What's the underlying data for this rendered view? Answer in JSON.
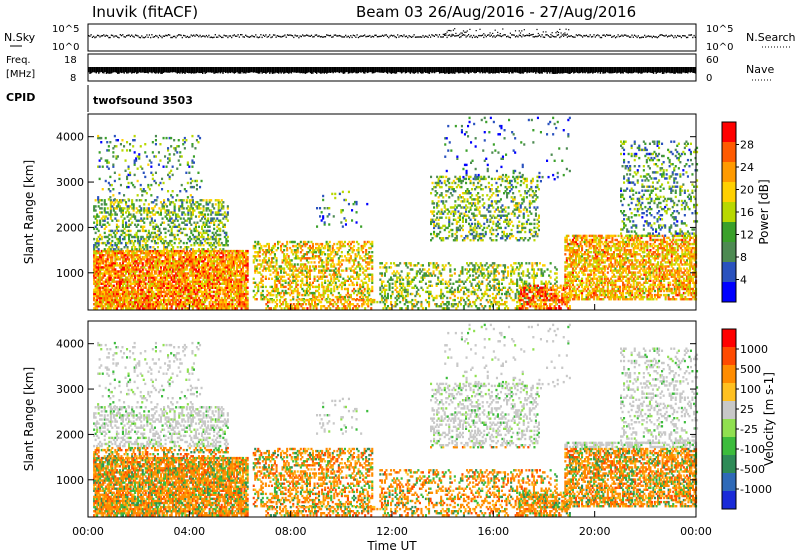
{
  "header": {
    "station": "Inuvik (fitACF)",
    "beam_date": "Beam 03 26/Aug/2016 - 27/Aug/2016"
  },
  "panels": {
    "nsky": {
      "left_label": "N.Sky",
      "right_label": "N.Search",
      "left_top": "10^5",
      "left_bottom": "10^0",
      "right_top": "10^5",
      "right_bottom": "10^0"
    },
    "freq": {
      "left_label_1": "Freq.",
      "left_label_2": "[MHz]",
      "right_label": "Nave",
      "left_top": "18",
      "left_bottom": "8",
      "right_top": "60",
      "right_bottom": "0"
    },
    "cpid": {
      "left_label": "CPID",
      "value": "twofsound 3503"
    }
  },
  "chart_data": [
    {
      "type": "heatmap",
      "parameter": "Power",
      "ylabel": "Slant Range [km]",
      "xlabel": "Time UT",
      "x_ticks": [
        "00:00",
        "04:00",
        "08:00",
        "12:00",
        "16:00",
        "20:00",
        "00:00"
      ],
      "x_range_hours": [
        0,
        24
      ],
      "y_ticks": [
        1000,
        2000,
        3000,
        4000
      ],
      "ylim": [
        180,
        4500
      ],
      "colorbar": {
        "label": "Power [dB]",
        "ticks": [
          "4",
          "8",
          "12",
          "16",
          "20",
          "24",
          "28"
        ],
        "range": [
          0,
          30
        ],
        "colors": [
          "#0000ff",
          "#2a52be",
          "#4d8a52",
          "#3aa02a",
          "#b8d800",
          "#ffd000",
          "#ff9a00",
          "#ff5a00",
          "#ff0000"
        ]
      }
    },
    {
      "type": "heatmap",
      "parameter": "Velocity",
      "ylabel": "Slant Range [km]",
      "xlabel": "Time UT",
      "x_ticks": [
        "00:00",
        "04:00",
        "08:00",
        "12:00",
        "16:00",
        "20:00",
        "00:00"
      ],
      "x_range_hours": [
        0,
        24
      ],
      "y_ticks": [
        1000,
        2000,
        3000,
        4000
      ],
      "ylim": [
        180,
        4500
      ],
      "colorbar": {
        "label": "Velocity [m s-1]",
        "ticks": [
          "1000",
          "500",
          "100",
          "25",
          "-25",
          "-100",
          "-500",
          "-1000"
        ],
        "colors": [
          "#1a2bd8",
          "#2f6ab8",
          "#2e8b57",
          "#3cbc3c",
          "#90e050",
          "#c8c8c8",
          "#ffc020",
          "#ff8c00",
          "#ff4a00",
          "#ff0000"
        ]
      }
    }
  ],
  "x_axis_title": "Time UT"
}
